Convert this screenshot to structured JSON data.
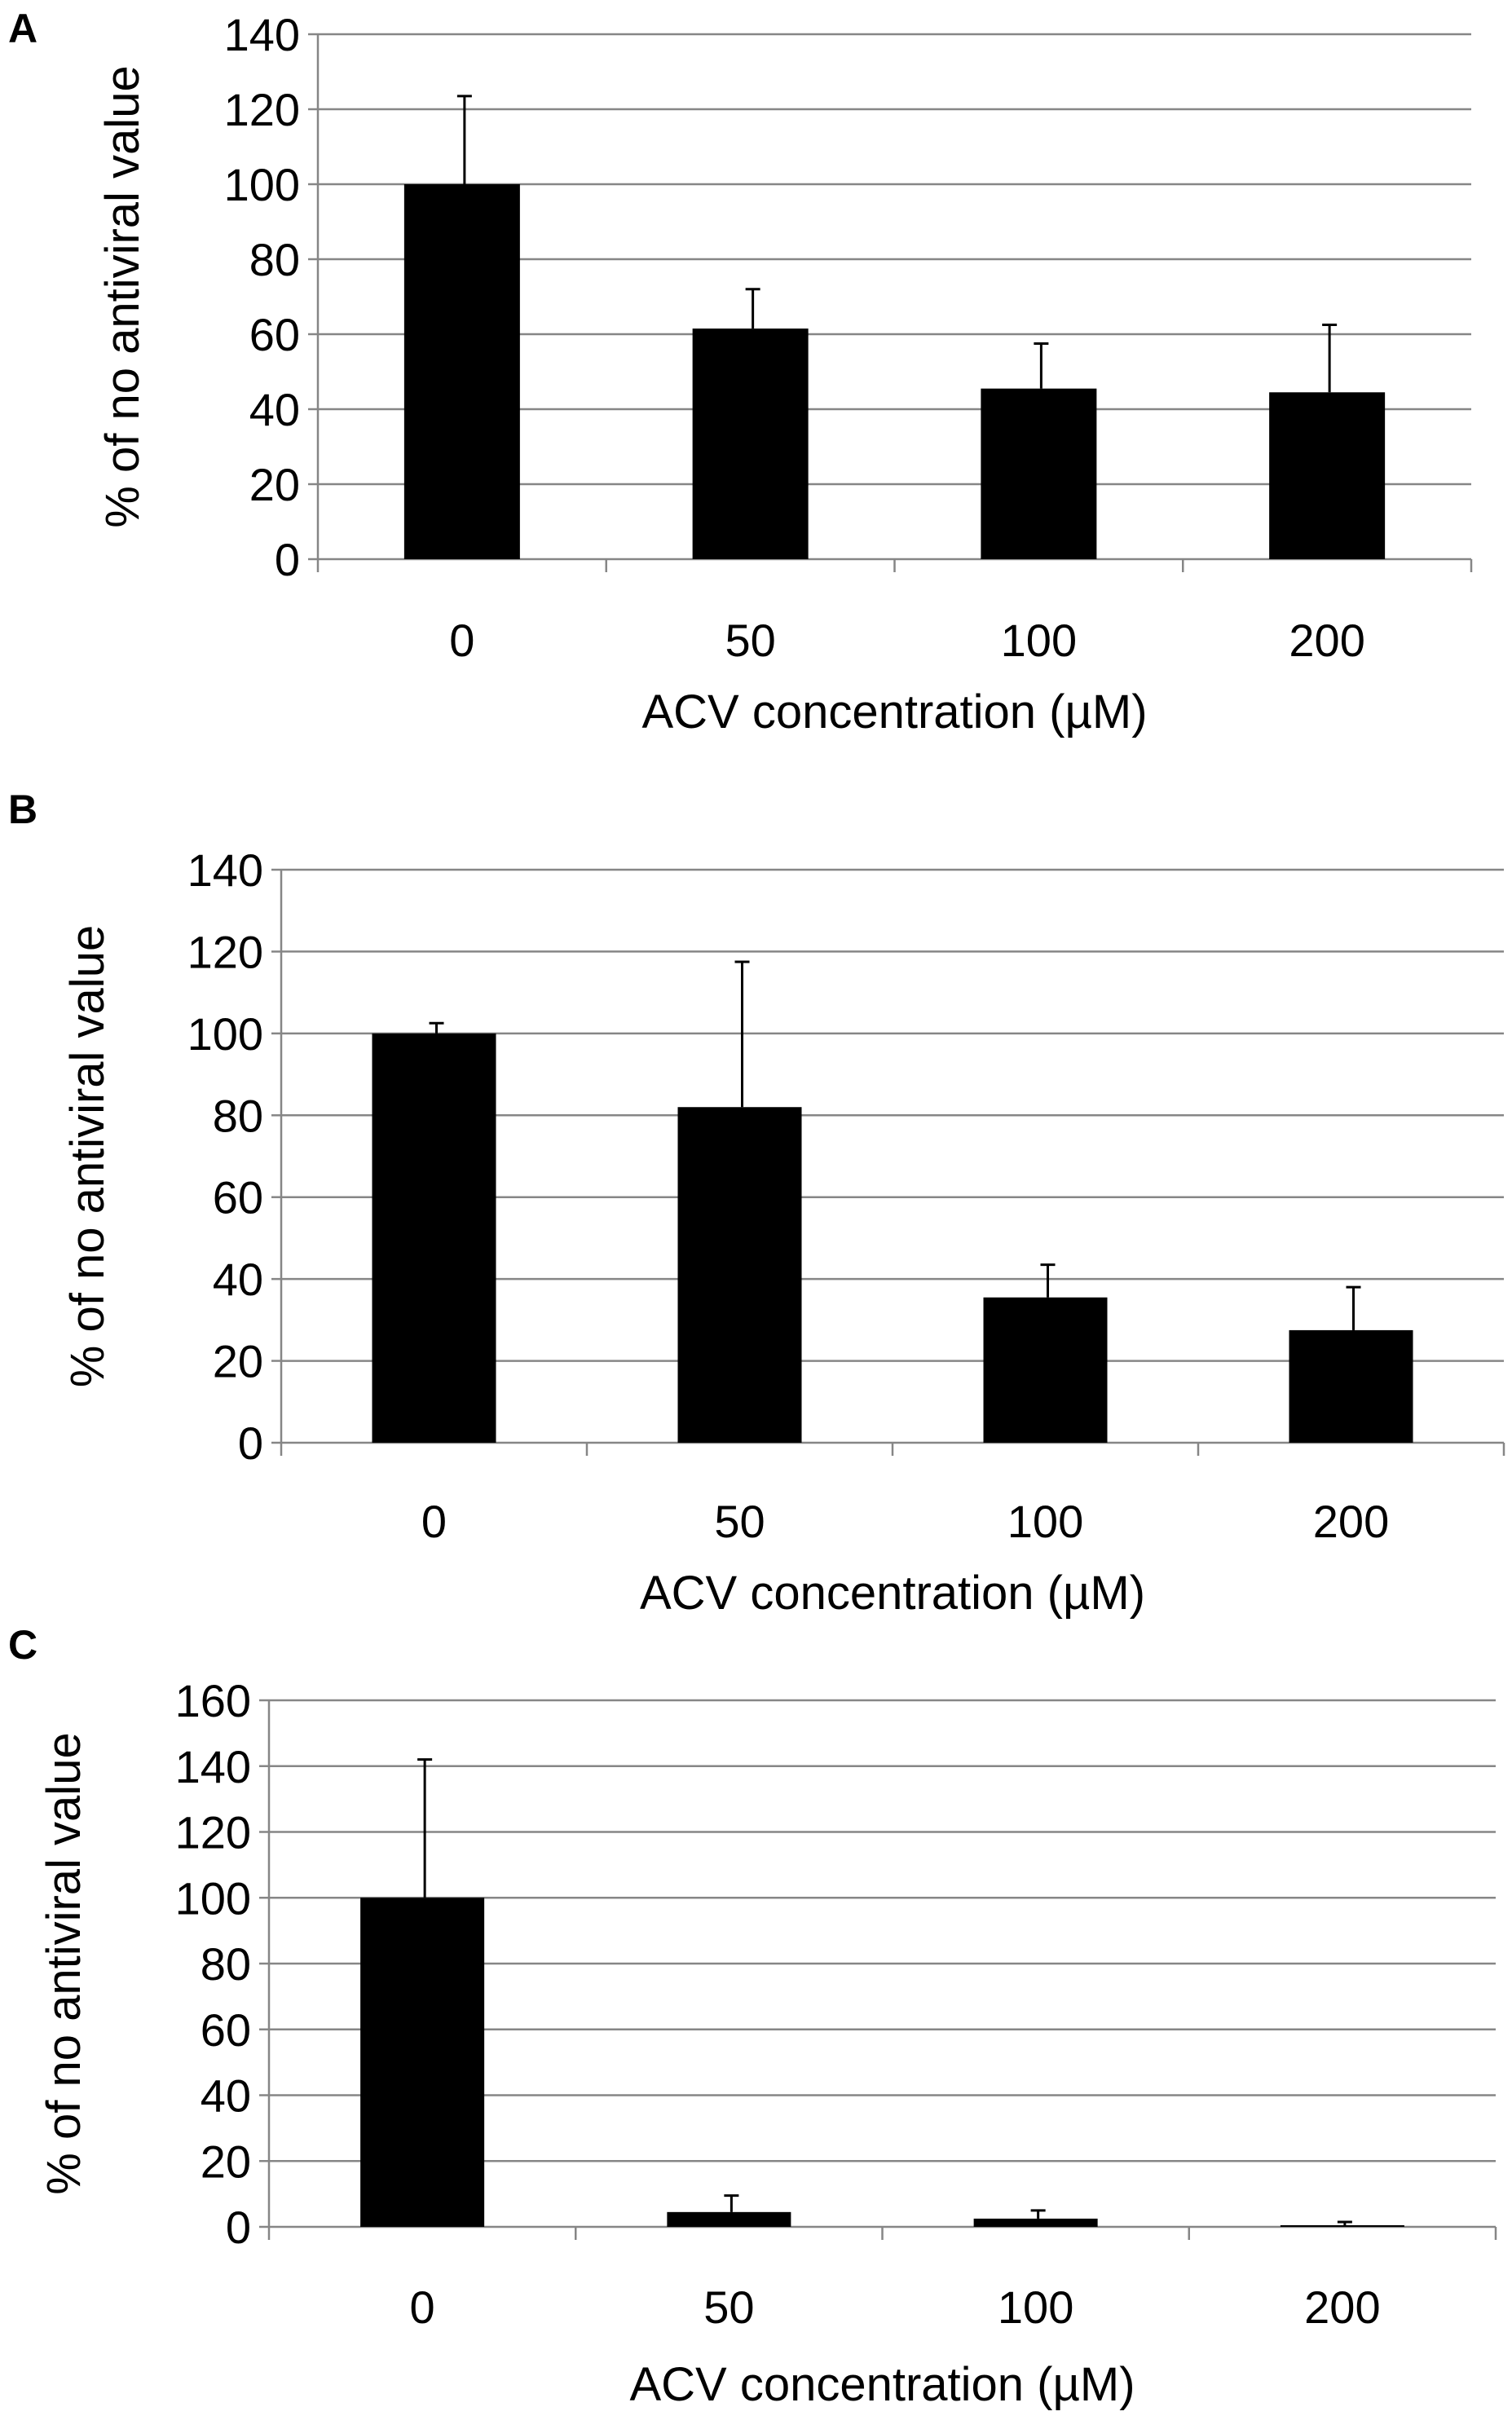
{
  "chart_data": [
    {
      "type": "bar",
      "panel": "A",
      "categories": [
        "0",
        "50",
        "100",
        "200"
      ],
      "values": [
        100,
        61.5,
        45.5,
        44.5
      ],
      "errors": [
        23.5,
        10.5,
        12,
        18
      ],
      "xlabel": "ACV concentration (µM)",
      "ylabel": "% of no antiviral value",
      "ylim": [
        0,
        140
      ],
      "yticks": [
        0,
        20,
        40,
        60,
        80,
        100,
        120,
        140
      ],
      "grid": true,
      "bar_color": "#000000",
      "grid_color": "#868686"
    },
    {
      "type": "bar",
      "panel": "B",
      "categories": [
        "0",
        "50",
        "100",
        "200"
      ],
      "values": [
        100,
        82,
        35.5,
        27.5
      ],
      "errors": [
        2.5,
        35.5,
        8,
        10.5
      ],
      "xlabel": "ACV concentration (µM)",
      "ylabel": "% of no antiviral value",
      "ylim": [
        0,
        140
      ],
      "yticks": [
        0,
        20,
        40,
        60,
        80,
        100,
        120,
        140
      ],
      "grid": true,
      "bar_color": "#000000",
      "grid_color": "#868686"
    },
    {
      "type": "bar",
      "panel": "C",
      "categories": [
        "0",
        "50",
        "100",
        "200"
      ],
      "values": [
        100,
        4.5,
        2.5,
        0.5
      ],
      "errors": [
        42,
        5,
        2.5,
        1
      ],
      "xlabel": "ACV concentration (µM)",
      "ylabel": "% of no antiviral value",
      "ylim": [
        0,
        160
      ],
      "yticks": [
        0,
        20,
        40,
        60,
        80,
        100,
        120,
        140,
        160
      ],
      "grid": true,
      "bar_color": "#000000",
      "grid_color": "#868686"
    }
  ]
}
